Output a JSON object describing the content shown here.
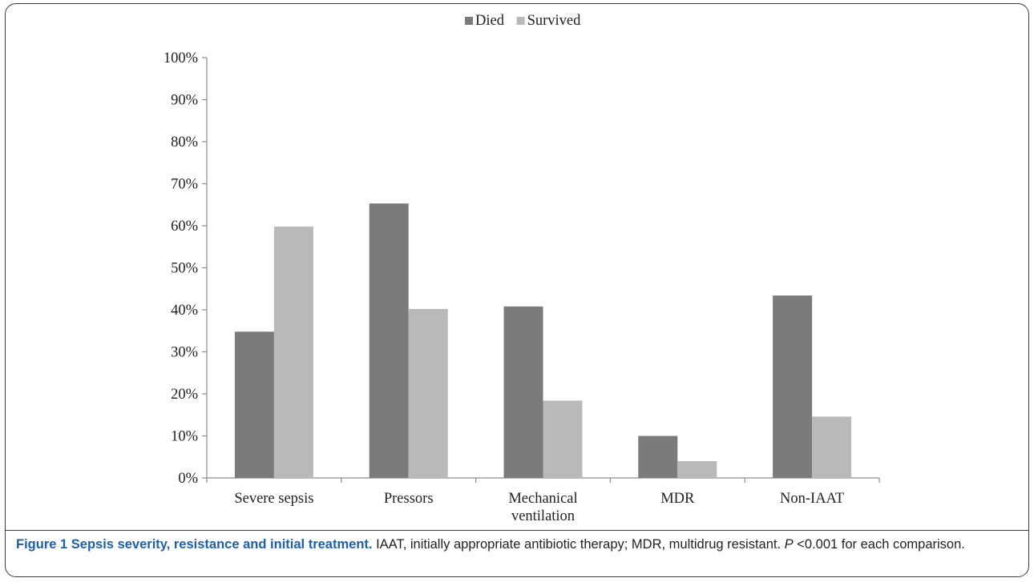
{
  "caption": {
    "label": "Figure 1",
    "title": "Sepsis severity, resistance and initial treatment.",
    "text_part1": "IAAT, initially appropriate antibiotic therapy; MDR, multidrug resistant.",
    "p_symbol": "P",
    "text_part2": "<0.001 for each comparison."
  },
  "chart_data": {
    "type": "bar",
    "title": "",
    "xlabel": "",
    "ylabel": "",
    "ylim": [
      0,
      100
    ],
    "y_ticks": [
      "0%",
      "10%",
      "20%",
      "30%",
      "40%",
      "50%",
      "60%",
      "70%",
      "80%",
      "90%",
      "100%"
    ],
    "grid": false,
    "legend_position": "top-center",
    "categories": [
      [
        "Severe sepsis"
      ],
      [
        "Pressors"
      ],
      [
        "Mechanical",
        "ventilation"
      ],
      [
        "MDR"
      ],
      [
        "Non-IAAT"
      ]
    ],
    "series": [
      {
        "name": "Died",
        "color": "#7b7b7e",
        "values": [
          34.8,
          65.3,
          40.8,
          10.0,
          43.4
        ]
      },
      {
        "name": "Survived",
        "color": "#b9b9bc",
        "values": [
          59.8,
          40.2,
          18.4,
          4.0,
          14.6
        ]
      }
    ]
  }
}
